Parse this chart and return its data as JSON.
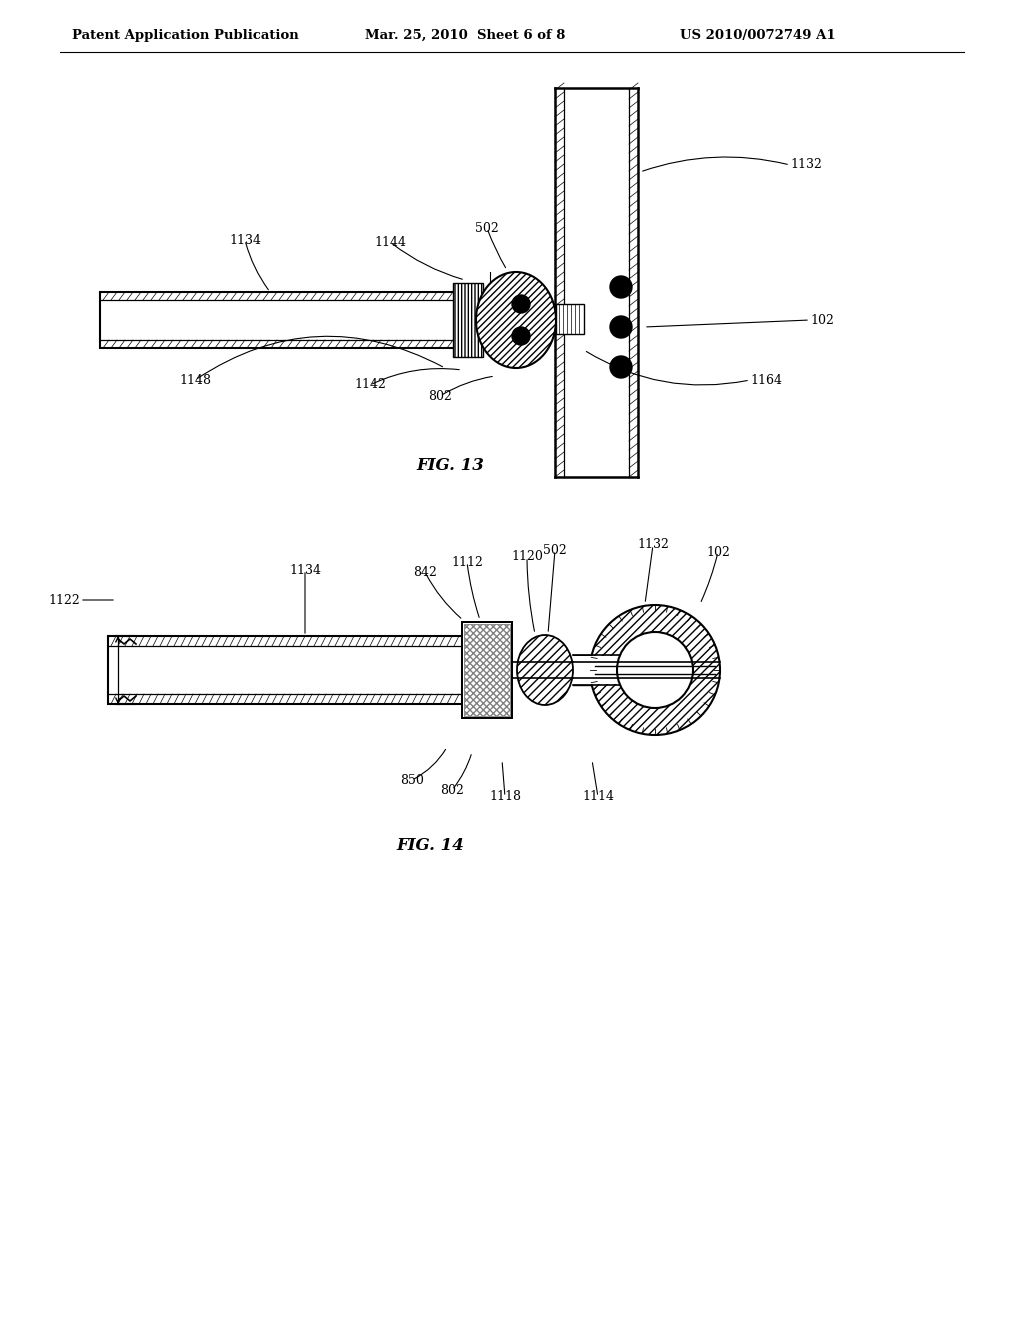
{
  "background_color": "#ffffff",
  "header_left": "Patent Application Publication",
  "header_center": "Mar. 25, 2010  Sheet 6 of 8",
  "header_right": "US 2010/0072749 A1",
  "fig13_label": "FIG. 13",
  "fig14_label": "FIG. 14",
  "line_color": "#000000"
}
